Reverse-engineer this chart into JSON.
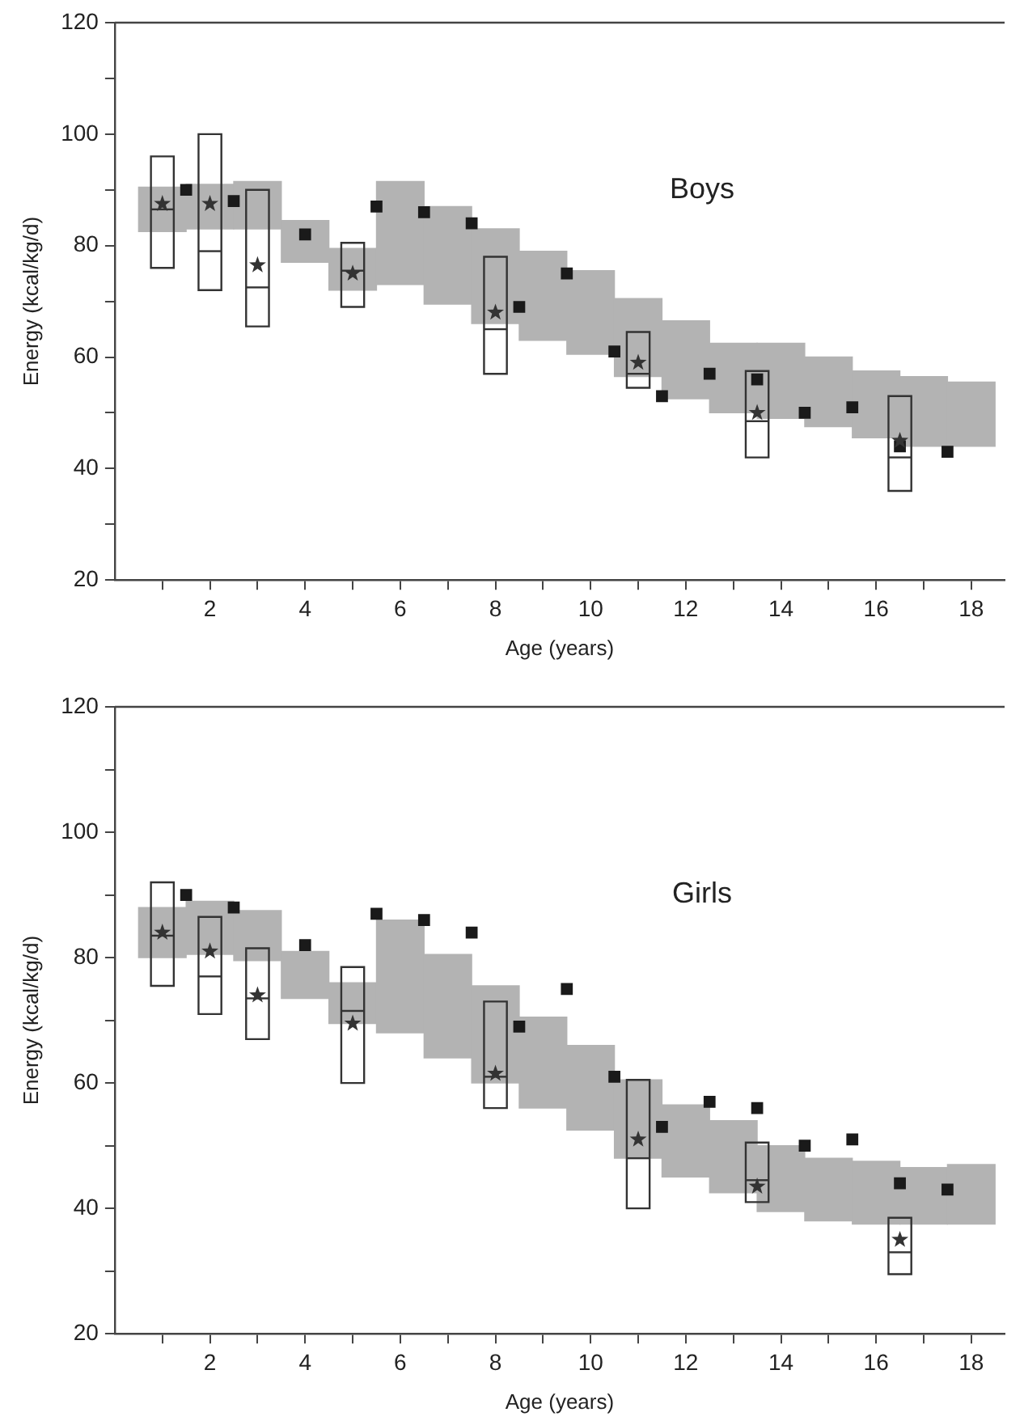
{
  "chart_data": [
    {
      "type": "bar",
      "title": "Boys",
      "xlabel": "Age (years)",
      "ylabel": "Energy (kcal/kg/d)",
      "xlim": [
        0,
        18.7
      ],
      "ylim": [
        20,
        120
      ],
      "xticks": [
        {
          "value": 1,
          "label": null
        },
        2,
        {
          "value": 3,
          "label": null
        },
        4,
        {
          "value": 5,
          "label": null
        },
        6,
        {
          "value": 7,
          "label": null
        },
        8,
        {
          "value": 9,
          "label": null
        },
        10,
        {
          "value": 11,
          "label": null
        },
        12,
        {
          "value": 13,
          "label": null
        },
        14,
        {
          "value": 15,
          "label": null
        },
        16,
        {
          "value": 17,
          "label": null
        },
        18
      ],
      "yticks": [
        20,
        {
          "value": 30,
          "label": null
        },
        40,
        {
          "value": 50,
          "label": null
        },
        60,
        {
          "value": 70,
          "label": null
        },
        80,
        {
          "value": 90,
          "label": null
        },
        100,
        {
          "value": 110,
          "label": null
        },
        120
      ],
      "grid": false,
      "legend": false,
      "series": [
        {
          "color": "#b3b3b3",
          "x": [
            1,
            2,
            3,
            4,
            5,
            6,
            7,
            8,
            9,
            10,
            11,
            12,
            13,
            14,
            15,
            16,
            17,
            18
          ],
          "base": [
            82.5,
            83,
            83,
            77,
            72,
            73,
            69.5,
            66,
            63,
            60.5,
            56.5,
            52.5,
            50,
            49,
            47.5,
            45.5,
            44,
            44
          ],
          "values": [
            8,
            8,
            8.5,
            7.5,
            7.5,
            18.5,
            17.5,
            17,
            16,
            15,
            14,
            14,
            12.5,
            13.5,
            12.5,
            12,
            12.5,
            11.5
          ]
        },
        {
          "type": "box",
          "color": "#333333",
          "x": [
            1,
            2,
            3,
            5,
            8,
            11,
            13.5,
            16.5
          ],
          "boxes": [
            {
              "low": 76,
              "q1": 76,
              "median": 86.5,
              "q3": 96,
              "high": 96,
              "mean": 87.5
            },
            {
              "low": 72,
              "q1": 72,
              "median": 79,
              "q3": 100,
              "high": 100,
              "mean": 87.5
            },
            {
              "low": 65.5,
              "q1": 65.5,
              "median": 72.5,
              "q3": 90,
              "high": 90,
              "mean": 76.5
            },
            {
              "low": 69,
              "q1": 69,
              "median": 75.5,
              "q3": 80.5,
              "high": 80.5,
              "mean": 75
            },
            {
              "low": 57,
              "q1": 57,
              "median": 65,
              "q3": 78,
              "high": 78,
              "mean": 68
            },
            {
              "low": 54.5,
              "q1": 54.5,
              "median": 57,
              "q3": 64.5,
              "high": 64.5,
              "mean": 59
            },
            {
              "low": 42,
              "q1": 42,
              "median": 48.5,
              "q3": 57.5,
              "high": 57.5,
              "mean": 50
            },
            {
              "low": 36,
              "q1": 36,
              "median": 42,
              "q3": 53,
              "high": 53,
              "mean": 45
            }
          ]
        },
        {
          "type": "scatter",
          "marker": "square",
          "color": "#1a1a1a",
          "x": [
            1.5,
            2.5,
            4,
            5.5,
            6.5,
            7.5,
            8.5,
            9.5,
            10.5,
            11.5,
            12.5,
            13.5,
            14.5,
            15.5,
            16.5,
            17.5
          ],
          "values": [
            90,
            88,
            82,
            87,
            86,
            84,
            69,
            75,
            61,
            53,
            57,
            56,
            50,
            51,
            44,
            43
          ]
        }
      ]
    },
    {
      "type": "bar",
      "title": "Girls",
      "xlabel": "Age (years)",
      "ylabel": "Energy (kcal/kg/d)",
      "xlim": [
        0,
        18.7
      ],
      "ylim": [
        20,
        120
      ],
      "xticks": [
        {
          "value": 1,
          "label": null
        },
        2,
        {
          "value": 3,
          "label": null
        },
        4,
        {
          "value": 5,
          "label": null
        },
        6,
        {
          "value": 7,
          "label": null
        },
        8,
        {
          "value": 9,
          "label": null
        },
        10,
        {
          "value": 11,
          "label": null
        },
        12,
        {
          "value": 13,
          "label": null
        },
        14,
        {
          "value": 15,
          "label": null
        },
        16,
        {
          "value": 17,
          "label": null
        },
        18
      ],
      "yticks": [
        20,
        {
          "value": 30,
          "label": null
        },
        40,
        {
          "value": 50,
          "label": null
        },
        60,
        {
          "value": 70,
          "label": null
        },
        80,
        {
          "value": 90,
          "label": null
        },
        100,
        {
          "value": 110,
          "label": null
        },
        120
      ],
      "grid": false,
      "legend": false,
      "series": [
        {
          "color": "#b3b3b3",
          "x": [
            1,
            2,
            3,
            4,
            5,
            6,
            7,
            8,
            9,
            10,
            11,
            12,
            13,
            14,
            15,
            16,
            17,
            18
          ],
          "base": [
            80,
            80.5,
            79.5,
            73.5,
            69.5,
            68,
            64,
            60,
            56,
            52.5,
            48,
            45,
            42.5,
            39.5,
            38,
            37.5,
            37.5,
            37.5
          ],
          "values": [
            8,
            8.5,
            8,
            7.5,
            6.5,
            18,
            16.5,
            15.5,
            14.5,
            13.5,
            12.5,
            11.5,
            11.5,
            10.5,
            10,
            10,
            9,
            9.5
          ]
        },
        {
          "type": "box",
          "color": "#333333",
          "x": [
            1,
            2,
            3,
            5,
            8,
            11,
            13.5,
            16.5
          ],
          "boxes": [
            {
              "low": 75.5,
              "q1": 75.5,
              "median": 83.5,
              "q3": 92,
              "high": 92,
              "mean": 84
            },
            {
              "low": 71,
              "q1": 71,
              "median": 77,
              "q3": 86.5,
              "high": 86.5,
              "mean": 81
            },
            {
              "low": 67,
              "q1": 67,
              "median": 73.5,
              "q3": 81.5,
              "high": 81.5,
              "mean": 74
            },
            {
              "low": 60,
              "q1": 60,
              "median": 71.5,
              "q3": 78.5,
              "high": 78.5,
              "mean": 69.5
            },
            {
              "low": 56,
              "q1": 56,
              "median": 61,
              "q3": 73,
              "high": 73,
              "mean": 61.5
            },
            {
              "low": 40,
              "q1": 40,
              "median": 48,
              "q3": 60.5,
              "high": 60.5,
              "mean": 51
            },
            {
              "low": 41,
              "q1": 41,
              "median": 44.5,
              "q3": 50.5,
              "high": 50.5,
              "mean": 43.5
            },
            {
              "low": 29.5,
              "q1": 29.5,
              "median": 33,
              "q3": 38.5,
              "high": 38.5,
              "mean": 35
            }
          ]
        },
        {
          "type": "scatter",
          "marker": "square",
          "color": "#1a1a1a",
          "x": [
            1.5,
            2.5,
            4,
            5.5,
            6.5,
            7.5,
            8.5,
            9.5,
            10.5,
            11.5,
            12.5,
            13.5,
            14.5,
            15.5,
            16.5,
            17.5
          ],
          "values": [
            90,
            88,
            82,
            87,
            86,
            84,
            69,
            75,
            61,
            53,
            57,
            56,
            50,
            51,
            44,
            43
          ]
        }
      ]
    }
  ]
}
